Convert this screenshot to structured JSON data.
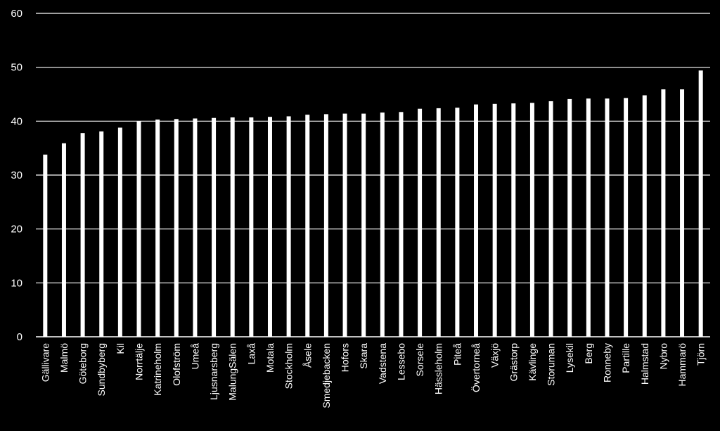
{
  "chart_data": {
    "type": "bar",
    "categories": [
      "Gällivare",
      "Malmö",
      "Göteborg",
      "Sundbyberg",
      "Kil",
      "Norrtälje",
      "Katrineholm",
      "Olofström",
      "Umeå",
      "Ljusnarsberg",
      "MalungSälen",
      "Laxå",
      "Motala",
      "Stockholm",
      "Åsele",
      "Smedjebacken",
      "Hofors",
      "Skara",
      "Vadstena",
      "Lessebo",
      "Sorsele",
      "Hässleholm",
      "Piteå",
      "Övertorneå",
      "Växjö",
      "Grästorp",
      "Kävlinge",
      "Storuman",
      "Lysekil",
      "Berg",
      "Ronneby",
      "Partille",
      "Halmstad",
      "Nybro",
      "Hammarö",
      "Tjörn"
    ],
    "values": [
      33.8,
      35.9,
      37.8,
      38.1,
      38.8,
      40.0,
      40.3,
      40.4,
      40.5,
      40.6,
      40.7,
      40.7,
      40.8,
      40.9,
      41.2,
      41.3,
      41.4,
      41.4,
      41.6,
      41.7,
      42.3,
      42.4,
      42.5,
      43.1,
      43.2,
      43.3,
      43.4,
      43.7,
      44.1,
      44.2,
      44.2,
      44.3,
      44.8,
      45.9,
      45.9,
      49.4
    ],
    "yticks": [
      0,
      10,
      20,
      30,
      40,
      50,
      60
    ],
    "ylim": [
      0,
      60
    ],
    "grid": true,
    "legend": "none",
    "title": "",
    "xlabel": "",
    "ylabel": "",
    "colors": {
      "background": "#000000",
      "bar": "#ffffff",
      "grid": "#ffffff",
      "text": "#ffffff"
    }
  }
}
